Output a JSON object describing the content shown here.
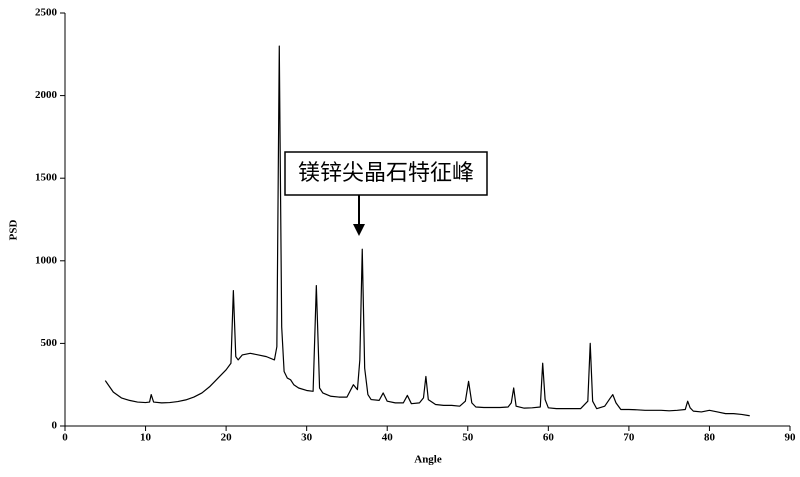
{
  "chart_data": {
    "type": "line",
    "x_label": "Angle",
    "y_label": "PSD",
    "annotation": "镁锌尖晶石特征峰",
    "color": "#000000",
    "xlim": [
      0,
      90
    ],
    "ylim": [
      0,
      2500
    ],
    "xticks": [
      0,
      10,
      20,
      30,
      40,
      50,
      60,
      70,
      80,
      90
    ],
    "yticks": [
      0,
      500,
      1000,
      1500,
      2000,
      2500
    ],
    "x": [
      5,
      5.5,
      6,
      7,
      8,
      9,
      10,
      10.5,
      10.7,
      11,
      12,
      13,
      14,
      15,
      16,
      17,
      18,
      19,
      20,
      20.6,
      20.9,
      21.2,
      21.5,
      22,
      23,
      24,
      25,
      26,
      26.3,
      26.6,
      26.9,
      27.2,
      27.6,
      28,
      28.4,
      29,
      30,
      30.8,
      31.2,
      31.6,
      32,
      33,
      34,
      35,
      35.8,
      36.3,
      36.6,
      36.9,
      37.2,
      37.6,
      38,
      39,
      39.5,
      40,
      41,
      42,
      42.5,
      43,
      44,
      44.5,
      44.8,
      45.1,
      46,
      47,
      48,
      49,
      49.7,
      50.1,
      50.5,
      51,
      52,
      53,
      54,
      55,
      55.4,
      55.7,
      56,
      57,
      58,
      59,
      59.3,
      59.6,
      60,
      61,
      62,
      63,
      64,
      64.9,
      65.2,
      65.5,
      66,
      67,
      67.7,
      68,
      68.4,
      69,
      70,
      71,
      72,
      73,
      74,
      75,
      76,
      77,
      77.3,
      77.6,
      78,
      79,
      80,
      81,
      82,
      83,
      84,
      85
    ],
    "values": [
      275,
      240,
      205,
      170,
      155,
      145,
      142,
      145,
      190,
      145,
      140,
      142,
      148,
      158,
      175,
      200,
      240,
      290,
      340,
      380,
      820,
      420,
      400,
      430,
      440,
      430,
      420,
      400,
      480,
      2300,
      600,
      330,
      290,
      280,
      250,
      230,
      215,
      210,
      850,
      230,
      200,
      180,
      175,
      175,
      250,
      220,
      400,
      1070,
      350,
      190,
      160,
      155,
      200,
      150,
      140,
      140,
      185,
      135,
      140,
      170,
      300,
      160,
      130,
      125,
      125,
      120,
      150,
      270,
      140,
      115,
      112,
      112,
      112,
      115,
      140,
      230,
      120,
      108,
      110,
      115,
      380,
      160,
      110,
      105,
      105,
      105,
      105,
      150,
      500,
      150,
      105,
      120,
      170,
      190,
      140,
      100,
      100,
      98,
      95,
      95,
      95,
      92,
      95,
      100,
      150,
      110,
      90,
      85,
      95,
      85,
      75,
      75,
      70,
      62
    ]
  }
}
